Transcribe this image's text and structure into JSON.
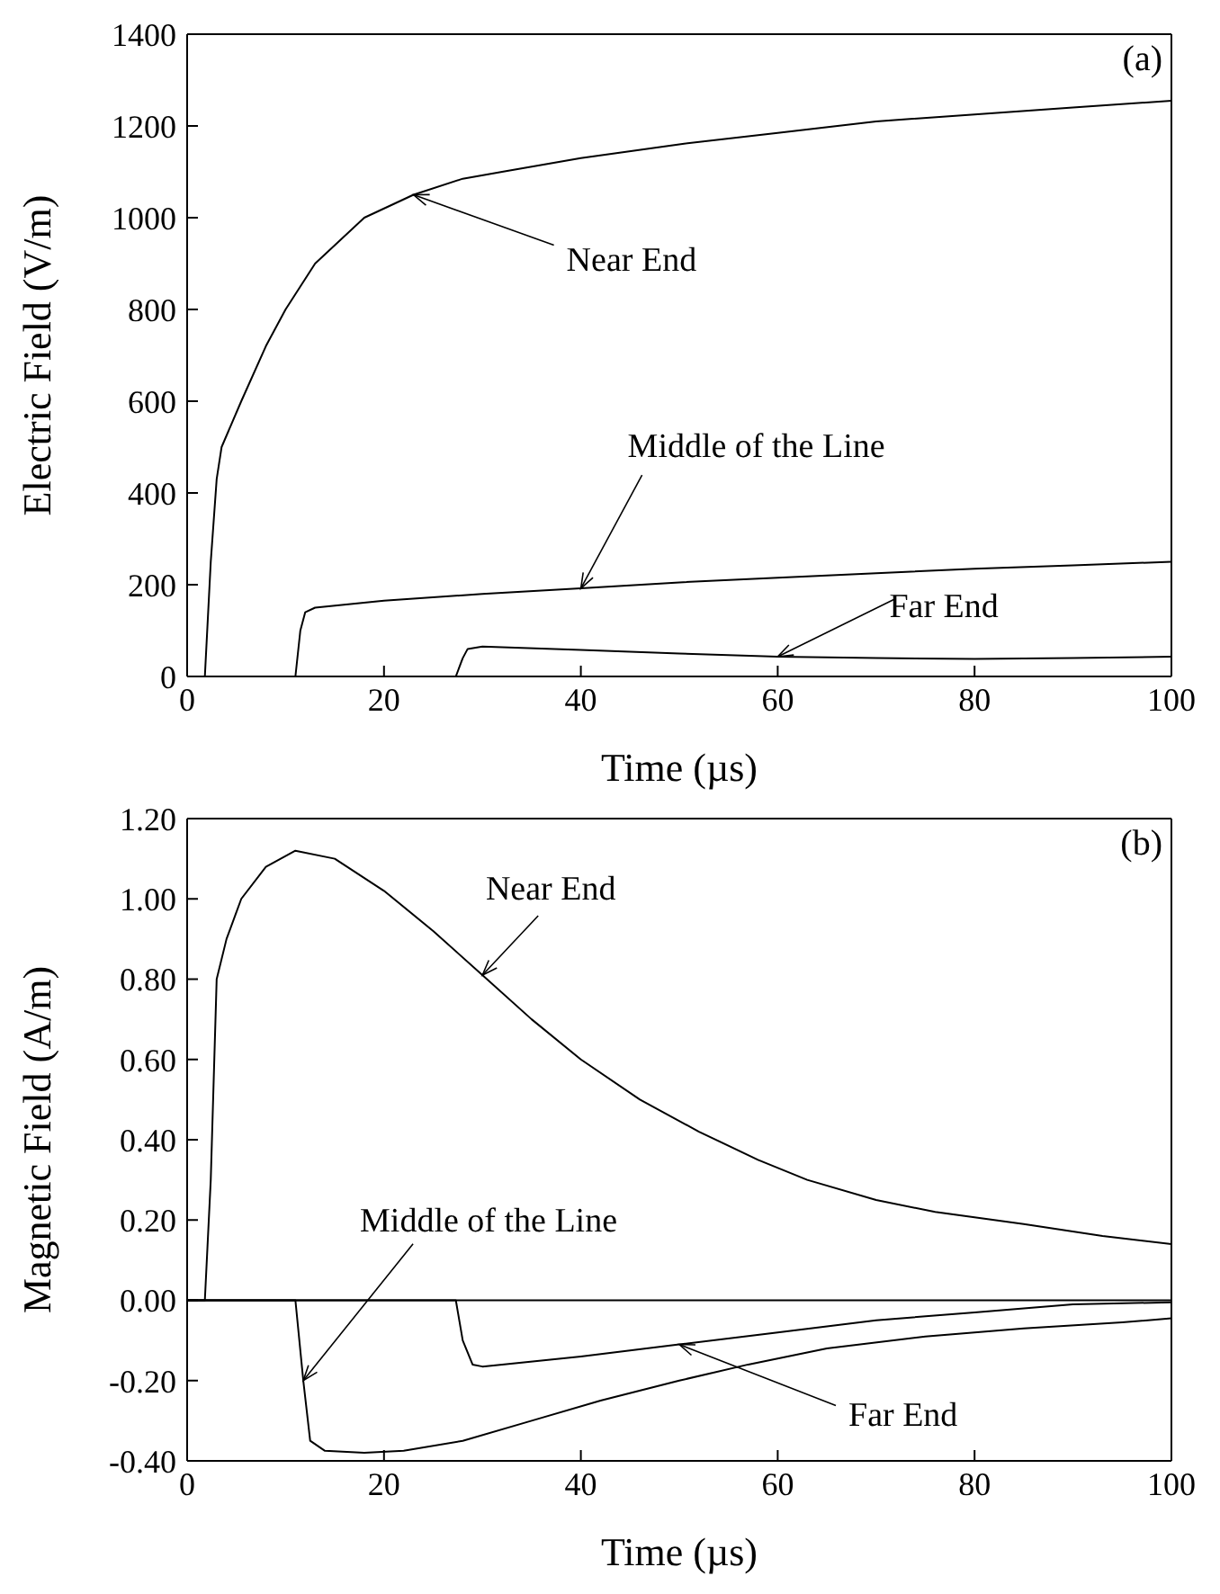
{
  "chart_data": [
    {
      "type": "line",
      "title": "(a)",
      "xlabel": "Time (µs)",
      "ylabel": "Electric Field (V/m)",
      "xlim": [
        0,
        100
      ],
      "xticks": [
        0,
        20,
        40,
        60,
        80,
        100
      ],
      "ylim": [
        0,
        1400
      ],
      "yticks": [
        0,
        200,
        400,
        600,
        800,
        1000,
        1200,
        1400
      ],
      "grid": false,
      "legend": false,
      "marker": "none",
      "line_style": "solid",
      "series": [
        {
          "color": "#000000",
          "x": [
            0,
            1.8,
            2.4,
            3,
            3.5,
            5.5,
            8,
            10,
            13,
            18,
            23,
            28,
            32,
            40,
            50,
            60,
            70,
            80,
            90,
            100
          ],
          "values": [
            0,
            0,
            250,
            430,
            500,
            600,
            720,
            800,
            900,
            1000,
            1050,
            1085,
            1100,
            1130,
            1160,
            1185,
            1210,
            1225,
            1240,
            1255
          ]
        },
        {
          "color": "#000000",
          "x": [
            0,
            11,
            11.5,
            12,
            13,
            20,
            30,
            40,
            50,
            60,
            70,
            80,
            90,
            100
          ],
          "values": [
            0,
            0,
            100,
            140,
            150,
            165,
            180,
            192,
            205,
            215,
            225,
            235,
            242,
            250
          ]
        },
        {
          "color": "#000000",
          "x": [
            0,
            27.3,
            28,
            28.5,
            30,
            40,
            50,
            60,
            70,
            80,
            90,
            100
          ],
          "values": [
            0,
            0,
            40,
            60,
            65,
            58,
            50,
            43,
            40,
            38,
            40,
            43
          ]
        }
      ],
      "annotations": [
        {
          "text": "Near End",
          "x": 23,
          "y": 1050
        },
        {
          "text": "Middle of the Line",
          "x": 40,
          "y": 192
        },
        {
          "text": "Far End",
          "x": 60,
          "y": 43
        }
      ]
    },
    {
      "type": "line",
      "title": "(b)",
      "xlabel": "Time (µs)",
      "ylabel": "Magnetic Field (A/m)",
      "xlim": [
        0,
        100
      ],
      "xticks": [
        0,
        20,
        40,
        60,
        80,
        100
      ],
      "ylim": [
        -0.4,
        1.2
      ],
      "yticks": [
        {
          "value": -0.4,
          "label": "-0.40"
        },
        {
          "value": -0.2,
          "label": "-0.20"
        },
        {
          "value": 0,
          "label": "0.00"
        },
        {
          "value": 0.2,
          "label": "0.20"
        },
        {
          "value": 0.4,
          "label": "0.40"
        },
        {
          "value": 0.6,
          "label": "0.60"
        },
        {
          "value": 0.8,
          "label": "0.80"
        },
        {
          "value": 1,
          "label": "1.00"
        },
        {
          "value": 1.2,
          "label": "1.20"
        }
      ],
      "grid": false,
      "legend": false,
      "marker": "none",
      "line_style": "solid",
      "ref_lines": [
        {
          "axis": "y",
          "value": 0,
          "color": "#000000"
        }
      ],
      "series": [
        {
          "color": "#000000",
          "x": [
            0,
            1.8,
            2.4,
            3,
            4,
            5.5,
            8,
            11,
            15,
            20,
            25,
            30,
            35,
            40,
            46,
            52,
            58,
            63,
            70,
            76,
            85,
            93,
            100
          ],
          "values": [
            0,
            0,
            0.3,
            0.8,
            0.9,
            1,
            1.08,
            1.12,
            1.1,
            1.02,
            0.92,
            0.81,
            0.7,
            0.6,
            0.5,
            0.42,
            0.35,
            0.3,
            0.25,
            0.22,
            0.19,
            0.16,
            0.14
          ]
        },
        {
          "color": "#000000",
          "x": [
            0,
            11,
            11.8,
            12.5,
            14,
            18,
            22,
            28,
            35,
            42,
            50,
            57,
            65,
            75,
            85,
            95,
            100
          ],
          "values": [
            0,
            0,
            -0.2,
            -0.35,
            -0.375,
            -0.38,
            -0.375,
            -0.35,
            -0.3,
            -0.25,
            -0.2,
            -0.16,
            -0.12,
            -0.09,
            -0.07,
            -0.055,
            -0.045
          ]
        },
        {
          "color": "#000000",
          "x": [
            0,
            27.3,
            28,
            29,
            30,
            40,
            50,
            60,
            70,
            80,
            90,
            100
          ],
          "values": [
            0,
            0,
            -0.1,
            -0.16,
            -0.165,
            -0.14,
            -0.11,
            -0.08,
            -0.05,
            -0.03,
            -0.01,
            -0.005
          ]
        }
      ],
      "annotations": [
        {
          "text": "Near End",
          "x": 30,
          "y": 0.81
        },
        {
          "text": "Middle of the Line",
          "x": 11.8,
          "y": -0.2
        },
        {
          "text": "Far End",
          "x": 50,
          "y": -0.11
        }
      ]
    }
  ]
}
